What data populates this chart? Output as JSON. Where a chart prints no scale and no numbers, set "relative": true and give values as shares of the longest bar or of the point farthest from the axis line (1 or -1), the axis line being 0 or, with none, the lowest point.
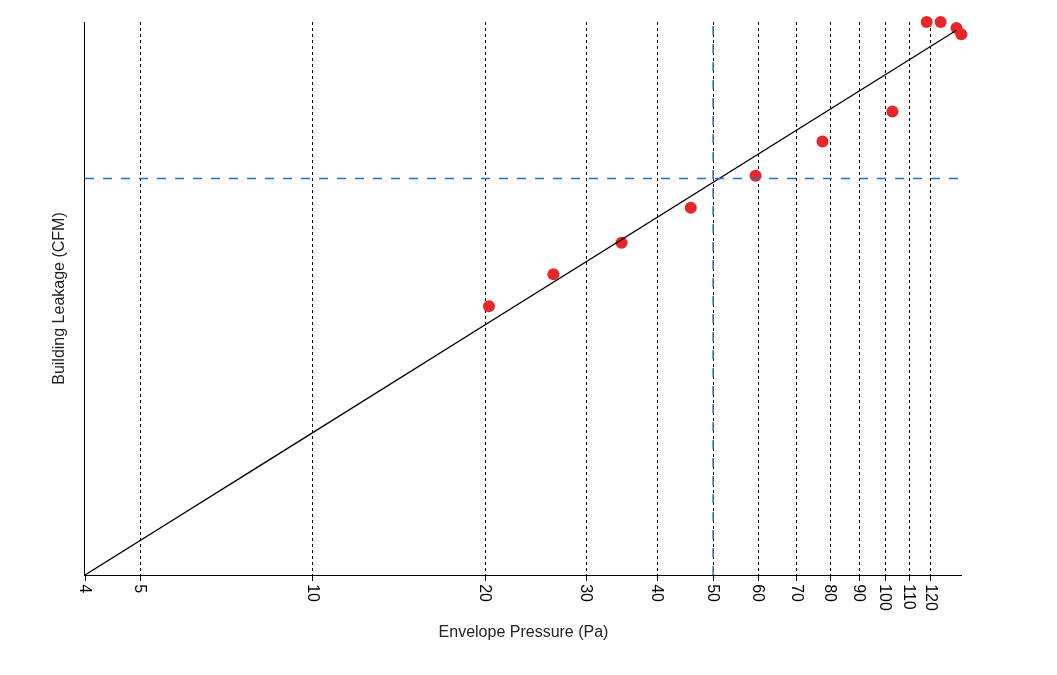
{
  "chart_data": {
    "type": "scatter",
    "xlabel": "Envelope Pressure (Pa)",
    "ylabel": "Building Leakage (CFM)",
    "relative": true,
    "log": "x",
    "grid": "x",
    "marker": "circle",
    "xlim": [
      4,
      136
    ],
    "xticks": [
      4,
      5,
      10,
      20,
      30,
      40,
      50,
      60,
      70,
      80,
      90,
      100,
      110,
      120
    ],
    "series": [
      {
        "color": "#e8262a",
        "x": [
          20.3,
          26.3,
          34.6,
          45.7,
          59.3,
          77.6,
          102.8,
          118,
          124.8,
          133,
          135.6
        ],
        "values": [
          0.486,
          0.544,
          0.601,
          0.664,
          0.722,
          0.784,
          0.838,
          1,
          1,
          0.989,
          0.978
        ]
      },
      {
        "type": "line",
        "color": "#000000",
        "marker": "none",
        "line_style": "solid",
        "x": [
          4,
          133
        ],
        "values": [
          0,
          0.985
        ]
      }
    ],
    "ref_lines": [
      {
        "axis": "x",
        "value": 50,
        "color": "#1f6fd1",
        "line_style": "dashed"
      },
      {
        "axis": "y",
        "value": 0.717,
        "color": "#1f6fd1",
        "line_style": "dashed"
      }
    ]
  }
}
